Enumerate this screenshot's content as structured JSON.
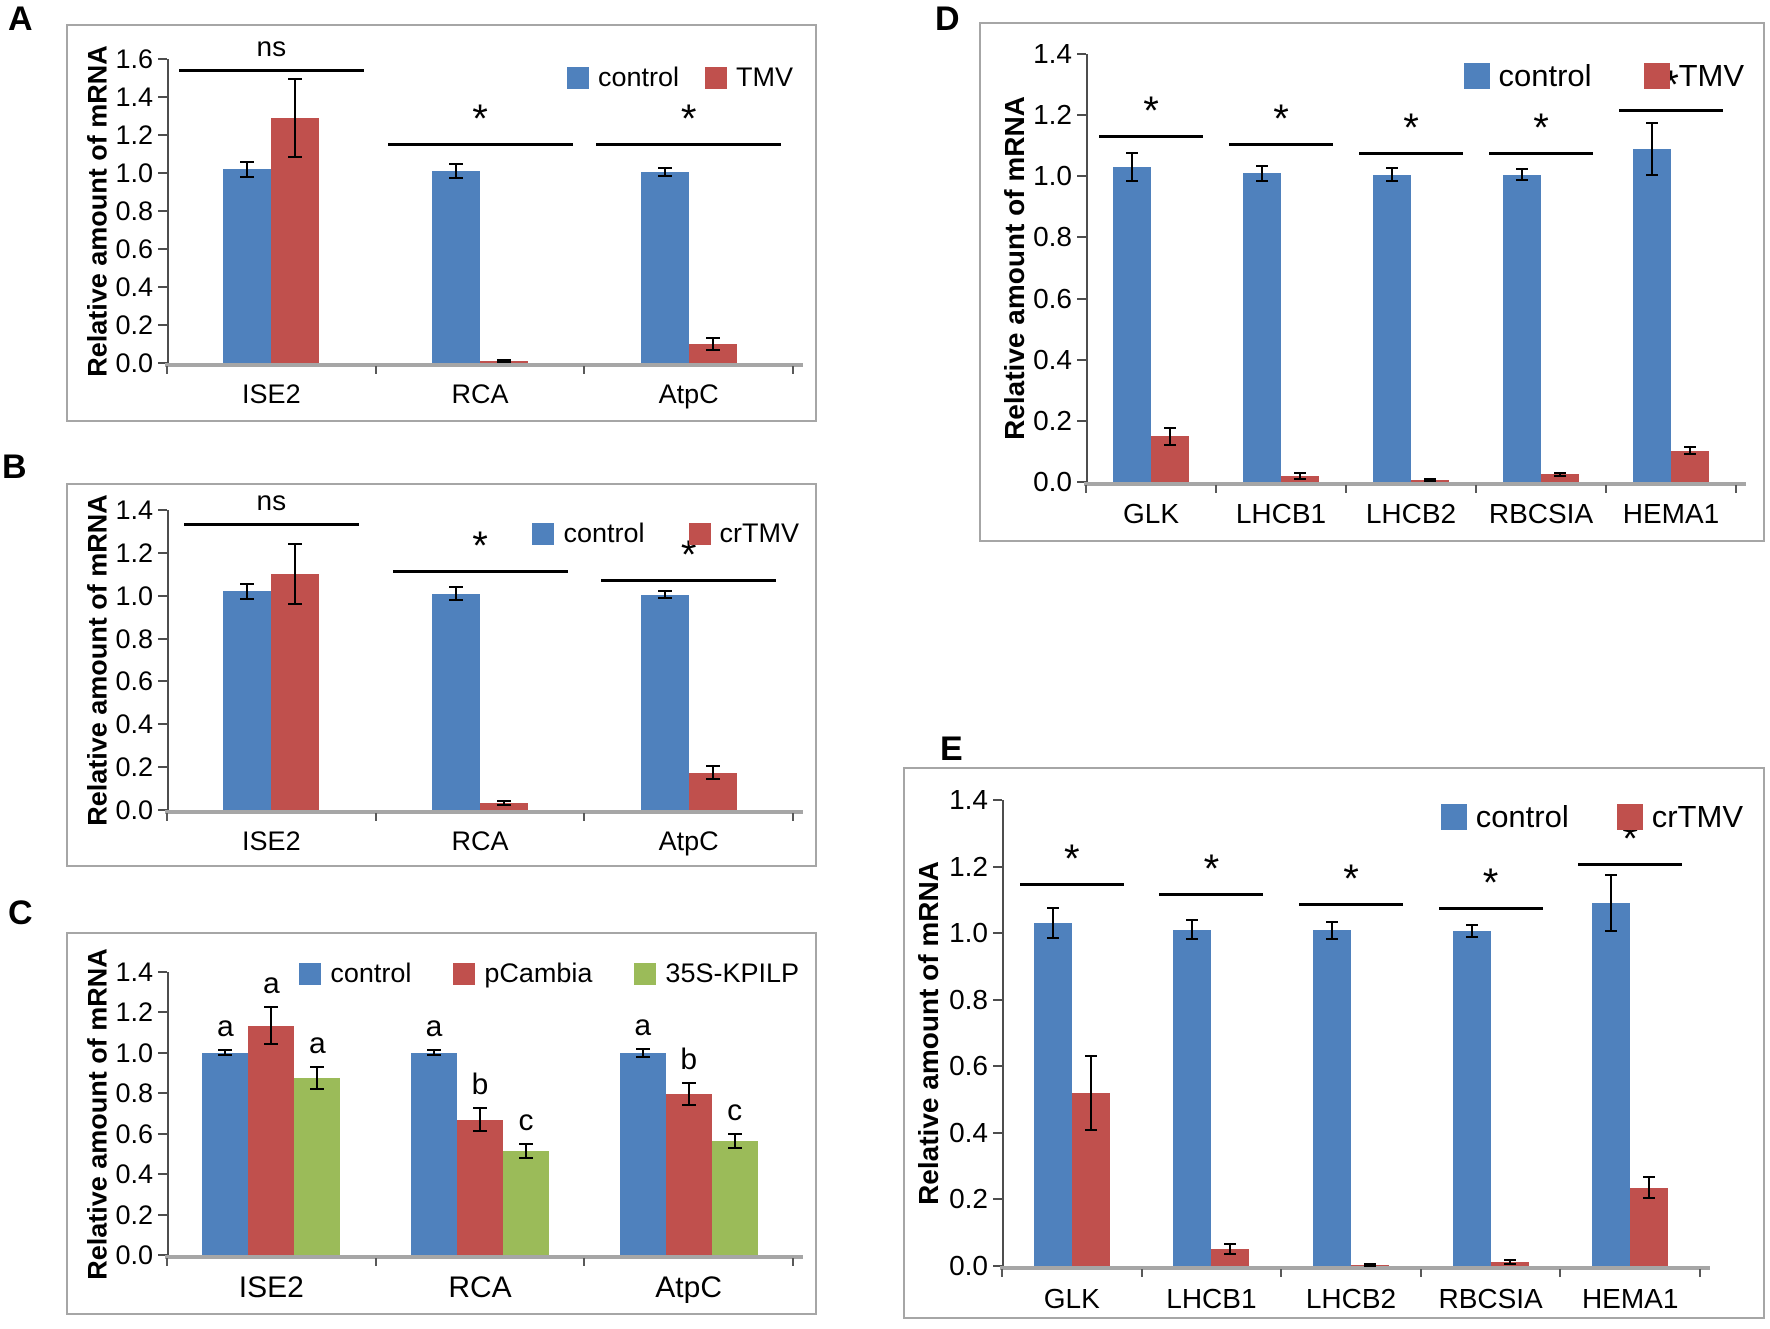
{
  "colors": {
    "control_blue": "#4F81BD",
    "virus_red": "#C0504D",
    "kpilp_green": "#9BBB59",
    "axis_gray": "#A6A6A6",
    "text_black": "#000000"
  },
  "chart_data": [
    {
      "type": "bar",
      "panel_label": "A",
      "title": "",
      "xlabel": "",
      "ylabel": "Relative amount of mRNA",
      "ylim": [
        0,
        1.6
      ],
      "ytick_step": 0.2,
      "grid": false,
      "legend_position": "top-right",
      "categories": [
        "ISE2",
        "RCA",
        "AtpC"
      ],
      "series": [
        {
          "name": "control",
          "color": "#4F81BD",
          "values": [
            1.02,
            1.01,
            1.005
          ],
          "errors": [
            0.04,
            0.035,
            0.02
          ]
        },
        {
          "name": "TMV",
          "color": "#C0504D",
          "values": [
            1.29,
            0.012,
            0.1
          ],
          "errors": [
            0.205,
            0.006,
            0.03
          ]
        }
      ],
      "significance": [
        {
          "category": "ISE2",
          "label": "ns",
          "line_y": 1.55
        },
        {
          "category": "RCA",
          "label": "*",
          "line_y": 1.16
        },
        {
          "category": "AtpC",
          "label": "*",
          "line_y": 1.16
        }
      ]
    },
    {
      "type": "bar",
      "panel_label": "B",
      "title": "",
      "xlabel": "",
      "ylabel": "Relative amount of mRNA",
      "ylim": [
        0,
        1.4
      ],
      "ytick_step": 0.2,
      "grid": false,
      "legend_position": "top-right",
      "categories": [
        "ISE2",
        "RCA",
        "AtpC"
      ],
      "series": [
        {
          "name": "control",
          "color": "#4F81BD",
          "values": [
            1.02,
            1.01,
            1.005
          ],
          "errors": [
            0.035,
            0.03,
            0.015
          ]
        },
        {
          "name": "crTMV",
          "color": "#C0504D",
          "values": [
            1.1,
            0.032,
            0.175
          ],
          "errors": [
            0.14,
            0.01,
            0.03
          ]
        }
      ],
      "significance": [
        {
          "category": "ISE2",
          "label": "ns",
          "line_y": 1.34
        },
        {
          "category": "RCA",
          "label": "*",
          "line_y": 1.12
        },
        {
          "category": "AtpC",
          "label": "*",
          "line_y": 1.08
        }
      ]
    },
    {
      "type": "bar",
      "panel_label": "C",
      "title": "",
      "xlabel": "",
      "ylabel": "Relative amount of mRNA",
      "ylim": [
        0,
        1.4
      ],
      "ytick_step": 0.2,
      "grid": false,
      "legend_position": "top-right",
      "categories": [
        "ISE2",
        "RCA",
        "AtpC"
      ],
      "series": [
        {
          "name": "control",
          "color": "#4F81BD",
          "values": [
            1.0,
            1.0,
            1.0
          ],
          "errors": [
            0.012,
            0.012,
            0.02
          ],
          "letters": [
            "a",
            "a",
            "a"
          ]
        },
        {
          "name": "pCambia",
          "color": "#C0504D",
          "values": [
            1.135,
            0.67,
            0.795
          ],
          "errors": [
            0.09,
            0.055,
            0.055
          ],
          "letters": [
            "a",
            "b",
            "b"
          ]
        },
        {
          "name": "35S-KPILP",
          "color": "#9BBB59",
          "values": [
            0.875,
            0.515,
            0.565
          ],
          "errors": [
            0.055,
            0.035,
            0.035
          ],
          "letters": [
            "a",
            "c",
            "c"
          ]
        }
      ],
      "significance": []
    },
    {
      "type": "bar",
      "panel_label": "D",
      "title": "",
      "xlabel": "",
      "ylabel": "Relative amount of mRNA",
      "ylim": [
        0,
        1.4
      ],
      "ytick_step": 0.2,
      "grid": false,
      "legend_position": "top-right",
      "categories": [
        "GLK",
        "LHCB1",
        "LHCB2",
        "RBCSIA",
        "HEMA1"
      ],
      "series": [
        {
          "name": "control",
          "color": "#4F81BD",
          "values": [
            1.03,
            1.01,
            1.005,
            1.005,
            1.09
          ],
          "errors": [
            0.045,
            0.025,
            0.022,
            0.018,
            0.085
          ]
        },
        {
          "name": "TMV",
          "color": "#C0504D",
          "values": [
            0.15,
            0.02,
            0.006,
            0.025,
            0.103
          ],
          "errors": [
            0.028,
            0.01,
            0.004,
            0.005,
            0.012
          ]
        }
      ],
      "significance": [
        {
          "category": "GLK",
          "label": "*",
          "line_y": 1.135
        },
        {
          "category": "LHCB1",
          "label": "*",
          "line_y": 1.11
        },
        {
          "category": "LHCB2",
          "label": "*",
          "line_y": 1.08
        },
        {
          "category": "RBCSIA",
          "label": "*",
          "line_y": 1.08
        },
        {
          "category": "HEMA1",
          "label": "*",
          "line_y": 1.22
        }
      ]
    },
    {
      "type": "bar",
      "panel_label": "E",
      "title": "",
      "xlabel": "",
      "ylabel": "Relative amount of mRNA",
      "ylim": [
        0,
        1.4
      ],
      "ytick_step": 0.2,
      "grid": false,
      "legend_position": "top-right",
      "categories": [
        "GLK",
        "LHCB1",
        "LHCB2",
        "RBCSIA",
        "HEMA1"
      ],
      "series": [
        {
          "name": "control",
          "color": "#4F81BD",
          "values": [
            1.03,
            1.01,
            1.008,
            1.005,
            1.09
          ],
          "errors": [
            0.045,
            0.028,
            0.025,
            0.018,
            0.085
          ]
        },
        {
          "name": "crTMV",
          "color": "#C0504D",
          "values": [
            0.52,
            0.052,
            0.004,
            0.012,
            0.235
          ],
          "errors": [
            0.11,
            0.015,
            0.003,
            0.005,
            0.032
          ]
        }
      ],
      "significance": [
        {
          "category": "GLK",
          "label": "*",
          "line_y": 1.15
        },
        {
          "category": "LHCB1",
          "label": "*",
          "line_y": 1.12
        },
        {
          "category": "LHCB2",
          "label": "*",
          "line_y": 1.09
        },
        {
          "category": "RBCSIA",
          "label": "*",
          "line_y": 1.08
        },
        {
          "category": "HEMA1",
          "label": "*",
          "line_y": 1.21
        }
      ]
    }
  ]
}
